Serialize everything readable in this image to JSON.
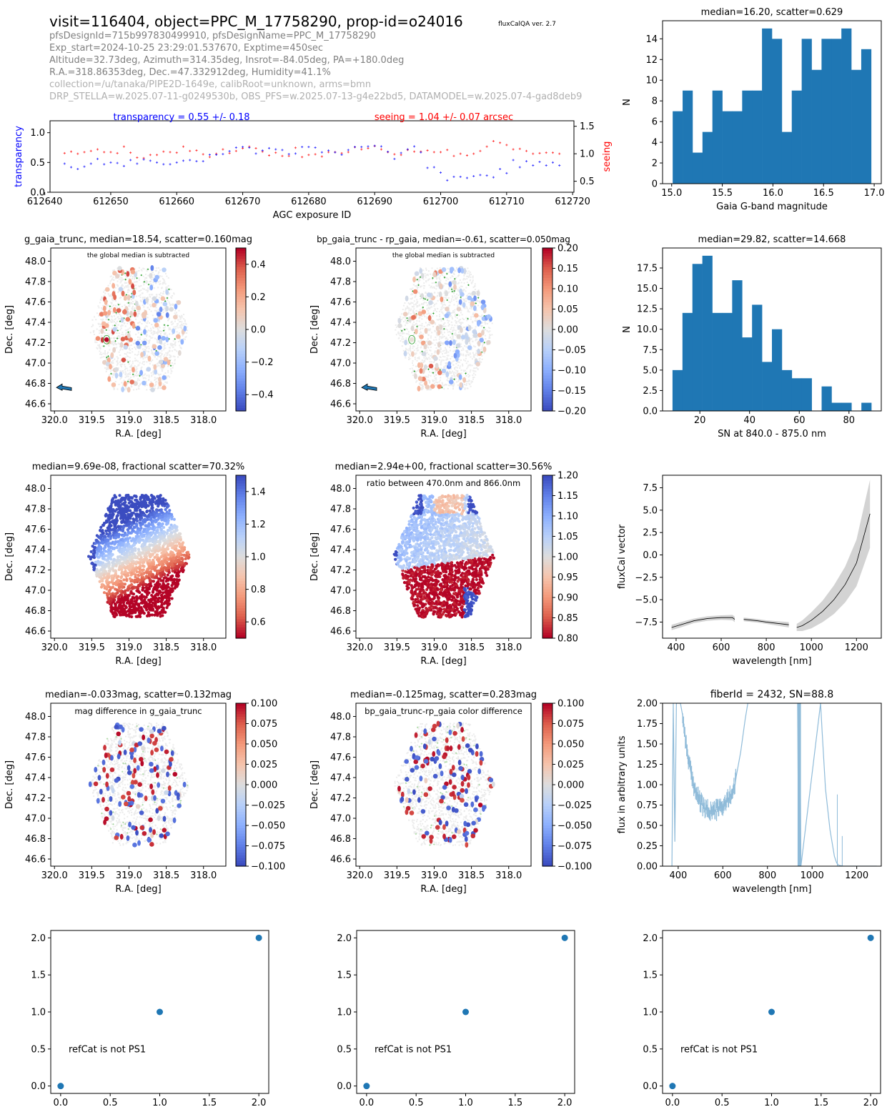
{
  "header": {
    "title": "visit=116404, object=PPC_M_17758290, prop-id=o24016",
    "version": "fluxCalQA ver. 2.7",
    "lines": [
      "pfsDesignId=715b997830499910, pfsDesignName=PPC_M_17758290",
      "Exp_start=2024-10-25 23:29:01.537670, Exptime=450sec",
      "Altitude=32.73deg, Azimuth=314.35deg, Insrot=-84.05deg, PA=+180.0deg",
      "R.A.=318.86353deg, Dec.=47.332912deg, Humidity=41.1%"
    ],
    "light_lines": [
      "collection=/u/tanaka/PIPE2D-1649e, calibRoot=unknown, arms=bmn",
      "DRP_STELLA=w.2025.07-11-g0249530b, OBS_PFS=w.2025.07-13-g4e22bd5, DATAMODEL=w.2025.07-4-gad8deb9"
    ]
  },
  "colors": {
    "blue": "#0000ff",
    "red": "#ff0000",
    "bar": "#1f77b4",
    "spec": "#8fbbd9",
    "band": "#d3d3d3",
    "green": "#2ca02c"
  },
  "chart_data": [
    {
      "id": "agc",
      "type": "scatter",
      "title_left": "transparency = 0.55 +/- 0.18",
      "title_right": "seeing = 1.04 +/- 0.07 arcsec",
      "xlabel": "AGC exposure ID",
      "ylabel": "transparency",
      "ylabel2": "seeing",
      "xlim": [
        612640.8,
        612720.2
      ],
      "ylim": [
        0,
        1.2
      ],
      "ylim2": [
        0.3,
        1.6
      ],
      "xticks": [
        612640,
        612650,
        612660,
        612670,
        612680,
        612690,
        612700,
        612710,
        612720
      ],
      "yticks": [
        0.0,
        0.5,
        1.0
      ],
      "yticks2": [
        0.5,
        1.0,
        1.5
      ],
      "x_start": 612643,
      "transparency": [
        0.48,
        0.42,
        0.39,
        0.43,
        0.48,
        0.56,
        0.47,
        0.5,
        0.49,
        0.44,
        0.54,
        0.48,
        0.55,
        0.53,
        0.5,
        0.47,
        0.47,
        0.5,
        0.53,
        0.54,
        0.52,
        0.52,
        0.63,
        0.63,
        0.64,
        0.69,
        0.75,
        0.76,
        0.75,
        0.65,
        0.7,
        0.74,
        0.72,
        0.71,
        0.64,
        0.65,
        0.76,
        0.76,
        0.75,
        0.67,
        0.7,
        0.67,
        0.63,
        0.71,
        0.76,
        0.76,
        0.77,
        0.78,
        0.77,
        0.68,
        0.56,
        0.66,
        0.72,
        0.77,
        0.67,
        0.41,
        0.42,
        0.33,
        0.2,
        0.26,
        0.26,
        0.24,
        0.27,
        0.29,
        0.28,
        0.25,
        0.39,
        0.32,
        0.54,
        0.42,
        0.52,
        0.45,
        0.51,
        0.45,
        0.5,
        0.45
      ],
      "seeing": [
        1.01,
        1.04,
        1.0,
        1.03,
        1.05,
        1.08,
        1.03,
        1.03,
        1.01,
        1.13,
        1.02,
        0.93,
        0.92,
        0.98,
        0.98,
        1.04,
        1.03,
        1.02,
        1.13,
        1.05,
        1.06,
        0.99,
        0.94,
        1.0,
        1.08,
        1.01,
        1.05,
        1.1,
        1.13,
        1.1,
        1.04,
        0.97,
        1.02,
        0.96,
        0.96,
        1.11,
        0.94,
        0.98,
        0.99,
        0.95,
        1.03,
        1.03,
        1.01,
        1.03,
        1.12,
        1.08,
        1.1,
        1.14,
        1.08,
        1.03,
        0.99,
        0.98,
        1.07,
        1.04,
        1.04,
        1.06,
        1.03,
        1.03,
        1.07,
        0.96,
        1.0,
        0.97,
        1.0,
        1.05,
        1.13,
        1.23,
        1.2,
        1.16,
        1.08,
        1.09,
        1.05,
        1.0,
        1.01,
        1.02,
        1.02,
        1.0
      ]
    },
    {
      "id": "hist_g",
      "type": "bar",
      "title": "median=16.20, scatter=0.629",
      "xlabel": "Gaia G-band magnitude",
      "ylabel": "N",
      "bin_range": [
        15.01,
        16.97
      ],
      "values": [
        7,
        9,
        3,
        5,
        9,
        7,
        7,
        9,
        9,
        15,
        14,
        5,
        9,
        14,
        11,
        14,
        14,
        15,
        11,
        13
      ],
      "xlim": [
        14.91,
        17.07
      ],
      "ylim": [
        0,
        15.75
      ],
      "xticks": [
        15.0,
        15.5,
        16.0,
        16.5,
        17.0
      ],
      "yticks": [
        0,
        2,
        4,
        6,
        8,
        10,
        12,
        14
      ]
    },
    {
      "id": "hist_sn",
      "type": "bar",
      "title": "median=29.82, scatter=14.668",
      "xlabel": "SN at 840.0 - 875.0 nm",
      "ylabel": "N",
      "bin_range": [
        9.0,
        89.0
      ],
      "values": [
        5,
        12,
        18,
        19,
        12,
        12,
        16,
        9,
        13,
        6,
        10,
        5,
        4,
        4,
        0,
        3,
        1,
        1,
        0,
        1
      ],
      "xlim": [
        5.0,
        93.0
      ],
      "ylim": [
        0,
        19.95
      ],
      "xticks": [
        20,
        40,
        60,
        80
      ],
      "yticks": [
        0.0,
        2.5,
        5.0,
        7.5,
        10.0,
        12.5,
        15.0,
        17.5
      ]
    },
    {
      "id": "map_g",
      "type": "scatter",
      "title": "g_gaia_trunc, median=18.54, scatter=0.160mag",
      "annotation": "the global median is subtracted",
      "xlabel": "R.A. [deg]",
      "ylabel": "Dec. [deg]",
      "xlim": [
        320.05,
        317.7
      ],
      "ylim": [
        46.53,
        48.13
      ],
      "xticks": [
        320.0,
        319.5,
        319.0,
        318.5,
        318.0
      ],
      "yticks": [
        46.6,
        46.8,
        47.0,
        47.2,
        47.4,
        47.6,
        47.8,
        48.0
      ],
      "colorbar": {
        "range": [
          -0.5,
          0.5
        ],
        "ticks": [
          -0.4,
          -0.2,
          0.0,
          0.2,
          0.4
        ],
        "labels": [
          "−0.4",
          "−0.2",
          "0.0",
          "0.2",
          "0.4"
        ],
        "cmap": "coolwarm"
      },
      "pattern": "sparse",
      "seed": 11,
      "arrow": true,
      "marked": true,
      "green_marks": true
    },
    {
      "id": "map_bprp",
      "type": "scatter",
      "title": "bp_gaia_trunc - rp_gaia, median=-0.61, scatter=0.050mag",
      "annotation": "the global median is subtracted",
      "xlabel": "R.A. [deg]",
      "ylabel": "Dec. [deg]",
      "xlim": [
        320.05,
        317.7
      ],
      "ylim": [
        46.53,
        48.13
      ],
      "xticks": [
        320.0,
        319.5,
        319.0,
        318.5,
        318.0
      ],
      "yticks": [
        46.6,
        46.8,
        47.0,
        47.2,
        47.4,
        47.6,
        47.8,
        48.0
      ],
      "colorbar": {
        "range": [
          -0.2,
          0.2
        ],
        "ticks": [
          -0.2,
          -0.15,
          -0.1,
          -0.05,
          0.0,
          0.05,
          0.1,
          0.15,
          0.2
        ],
        "labels": [
          "−0.20",
          "−0.15",
          "−0.10",
          "−0.05",
          "0.00",
          "0.05",
          "0.10",
          "0.15",
          "0.20"
        ],
        "cmap": "coolwarm"
      },
      "pattern": "sparse_soft",
      "seed": 23,
      "arrow": true,
      "marked": true,
      "green_marks": true
    },
    {
      "id": "map_flux",
      "type": "scatter",
      "title": "median=9.69e-08, fractional scatter=70.32%",
      "annotation": "",
      "xlabel": "R.A. [deg]",
      "ylabel": "Dec. [deg]",
      "xlim": [
        320.05,
        317.7
      ],
      "ylim": [
        46.53,
        48.13
      ],
      "xticks": [
        320.0,
        319.5,
        319.0,
        318.5,
        318.0
      ],
      "yticks": [
        46.6,
        46.8,
        47.0,
        47.2,
        47.4,
        47.6,
        47.8,
        48.0
      ],
      "colorbar": {
        "range": [
          0.5,
          1.5
        ],
        "ticks": [
          0.6,
          0.8,
          1.0,
          1.2,
          1.4
        ],
        "labels": [
          "0.6",
          "0.8",
          "1.0",
          "1.2",
          "1.4"
        ],
        "cmap": "coolwarm_r"
      },
      "pattern": "gradient",
      "seed": 5
    },
    {
      "id": "map_ratio",
      "type": "scatter",
      "title": "median=2.94e+00, fractional scatter=30.56%",
      "annotation": "ratio between 470.0nm and 866.0nm",
      "xlabel": "R.A. [deg]",
      "ylabel": "Dec. [deg]",
      "xlim": [
        320.05,
        317.7
      ],
      "ylim": [
        46.53,
        48.13
      ],
      "xticks": [
        320.0,
        319.5,
        319.0,
        318.5,
        318.0
      ],
      "yticks": [
        46.6,
        46.8,
        47.0,
        47.2,
        47.4,
        47.6,
        47.8,
        48.0
      ],
      "colorbar": {
        "range": [
          0.8,
          1.2
        ],
        "ticks": [
          0.8,
          0.85,
          0.9,
          0.95,
          1.0,
          1.05,
          1.1,
          1.15,
          1.2
        ],
        "labels": [
          "0.80",
          "0.85",
          "0.90",
          "0.95",
          "1.00",
          "1.05",
          "1.10",
          "1.15",
          "1.20"
        ],
        "cmap": "coolwarm_r"
      },
      "pattern": "ratio",
      "seed": 7
    },
    {
      "id": "fluxcal",
      "type": "area",
      "title": "",
      "xlabel": "wavelength [nm]",
      "ylabel": "fluxCal vector",
      "xlim": [
        340,
        1310
      ],
      "ylim": [
        -9.3,
        8.9
      ],
      "xticks": [
        400,
        600,
        800,
        1000,
        1200
      ],
      "yticks": [
        -7.5,
        -5.0,
        -2.5,
        0.0,
        2.5,
        5.0,
        7.5
      ],
      "ytick_labels": [
        "−7.5",
        "−5.0",
        "−2.5",
        "0.0",
        "2.5",
        "5.0",
        "7.5"
      ],
      "segments": [
        {
          "x": [
            380,
            420,
            480,
            540,
            600,
            650,
            660
          ],
          "y": [
            -8.1,
            -7.8,
            -7.35,
            -7.1,
            -7.0,
            -7.0,
            -7.2
          ],
          "err": [
            0.3,
            0.3,
            0.25,
            0.25,
            0.25,
            0.3,
            0.3
          ]
        },
        {
          "x": [
            700,
            760,
            800,
            850,
            900
          ],
          "y": [
            -7.2,
            -7.35,
            -7.5,
            -7.65,
            -7.8
          ],
          "err": [
            0.2,
            0.2,
            0.2,
            0.25,
            0.3
          ]
        },
        {
          "x": [
            935,
            960,
            1000,
            1050,
            1100,
            1150,
            1200,
            1260
          ],
          "y": [
            -8.1,
            -7.9,
            -7.3,
            -6.3,
            -5.0,
            -3.3,
            -0.9,
            4.6
          ],
          "err": [
            0.4,
            0.6,
            0.9,
            1.2,
            1.6,
            2.0,
            2.6,
            3.8
          ]
        }
      ]
    },
    {
      "id": "spectrum",
      "type": "line",
      "title": "fiberId = 2432, SN=88.8",
      "xlabel": "wavelength [nm]",
      "ylabel": "flux in arbitrary units",
      "xlim": [
        330,
        1310
      ],
      "ylim": [
        0,
        2.0
      ],
      "xticks": [
        400,
        600,
        800,
        1000,
        1200
      ],
      "yticks": [
        0.0,
        0.25,
        0.5,
        0.75,
        1.0,
        1.25,
        1.5,
        1.75,
        2.0
      ],
      "ytick_labels": [
        "0.00",
        "0.25",
        "0.50",
        "0.75",
        "1.00",
        "1.25",
        "1.50",
        "1.75",
        "2.00"
      ],
      "x": [
        372,
        378,
        385,
        392,
        400,
        410,
        420,
        440,
        460,
        480,
        500,
        520,
        540,
        560,
        580,
        600,
        620,
        640,
        650,
        655,
        660,
        680,
        700,
        712,
        935,
        940,
        945,
        950,
        1038,
        1045,
        1060,
        1080,
        1100,
        1110,
        1120,
        1140,
        1200,
        1290
      ],
      "y": [
        0.0,
        2.0,
        0.3,
        2.0,
        2.0,
        2.0,
        1.85,
        1.4,
        1.1,
        0.9,
        0.78,
        0.7,
        0.68,
        0.68,
        0.7,
        0.74,
        0.8,
        0.9,
        0.95,
        1.0,
        1.1,
        1.4,
        1.8,
        2.0,
        2.0,
        0.0,
        2.0,
        0.0,
        2.0,
        1.65,
        0.95,
        0.45,
        0.12,
        0.04,
        0.01,
        0.0,
        0.0,
        0.0
      ]
    },
    {
      "id": "refcat1",
      "type": "scatter",
      "annotation": "refCat is not PS1",
      "x": [
        0,
        1,
        2
      ],
      "y": [
        0,
        1,
        2
      ],
      "xlim": [
        -0.1,
        2.1
      ],
      "ylim": [
        -0.1,
        2.1
      ],
      "xticks": [
        0.0,
        0.5,
        1.0,
        1.5,
        2.0
      ],
      "yticks": [
        0.0,
        0.5,
        1.0,
        1.5,
        2.0
      ]
    },
    {
      "id": "refcat2",
      "type": "scatter",
      "annotation": "refCat is not PS1",
      "x": [
        0,
        1,
        2
      ],
      "y": [
        0,
        1,
        2
      ],
      "xlim": [
        -0.1,
        2.1
      ],
      "ylim": [
        -0.1,
        2.1
      ],
      "xticks": [
        0.0,
        0.5,
        1.0,
        1.5,
        2.0
      ],
      "yticks": [
        0.0,
        0.5,
        1.0,
        1.5,
        2.0
      ]
    },
    {
      "id": "refcat3",
      "type": "scatter",
      "annotation": "refCat is not PS1",
      "x": [
        0,
        1,
        2
      ],
      "y": [
        0,
        1,
        2
      ],
      "xlim": [
        -0.1,
        2.1
      ],
      "ylim": [
        -0.1,
        2.1
      ],
      "xticks": [
        0.0,
        0.5,
        1.0,
        1.5,
        2.0
      ],
      "yticks": [
        0.0,
        0.5,
        1.0,
        1.5,
        2.0
      ]
    }
  ],
  "map_diffs": [
    {
      "id": "map_gdiff",
      "title": "median=-0.033mag, scatter=0.132mag",
      "annotation": "mag difference in g_gaia_trunc",
      "colorbar": {
        "range": [
          -0.1,
          0.1
        ],
        "ticks": [
          -0.1,
          -0.075,
          -0.05,
          -0.025,
          0.0,
          0.025,
          0.05,
          0.075,
          0.1
        ],
        "labels": [
          "−0.100",
          "−0.075",
          "−0.050",
          "−0.025",
          "0.000",
          "0.025",
          "0.050",
          "0.075",
          "0.100"
        ]
      },
      "seed": 31
    },
    {
      "id": "map_cdiff",
      "title": "median=-0.125mag, scatter=0.283mag",
      "annotation": "bp_gaia_trunc-rp_gaia color difference",
      "colorbar": {
        "range": [
          -0.1,
          0.1
        ],
        "ticks": [
          -0.1,
          -0.075,
          -0.05,
          -0.025,
          0.0,
          0.025,
          0.05,
          0.075,
          0.1
        ],
        "labels": [
          "−0.100",
          "−0.075",
          "−0.050",
          "−0.025",
          "0.000",
          "0.025",
          "0.050",
          "0.075",
          "0.100"
        ]
      },
      "seed": 47
    }
  ]
}
